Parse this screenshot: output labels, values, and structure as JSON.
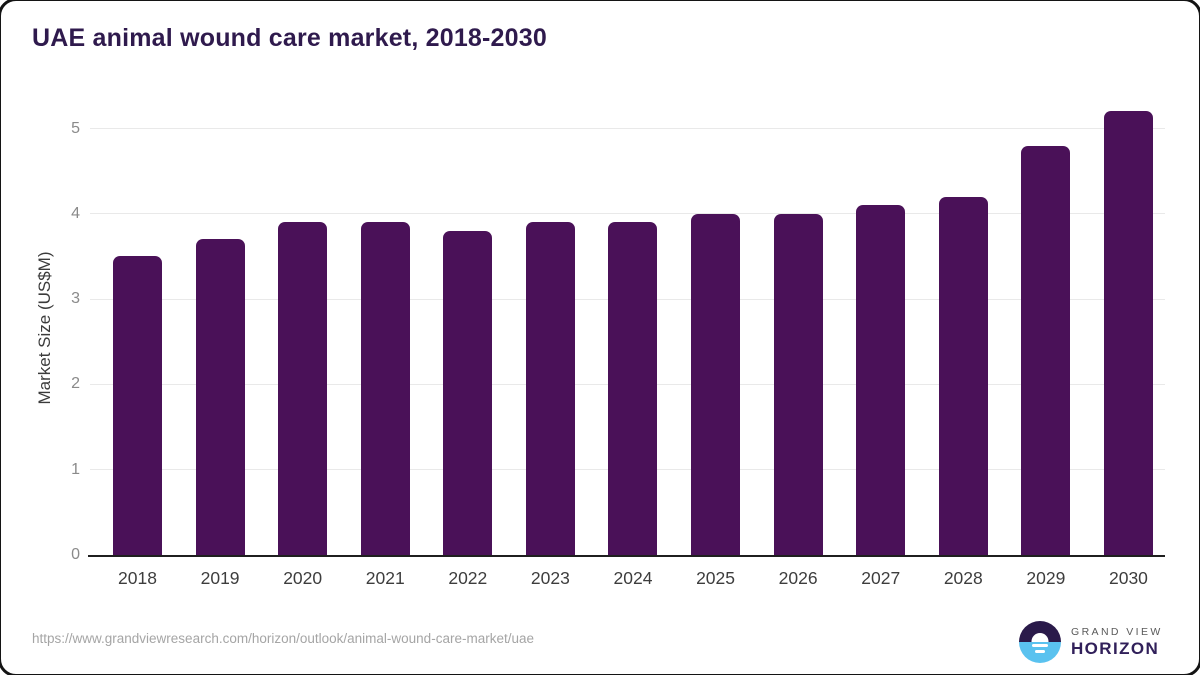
{
  "title": "UAE animal wound care market, 2018-2030",
  "chart_data": {
    "type": "bar",
    "categories": [
      "2018",
      "2019",
      "2020",
      "2021",
      "2022",
      "2023",
      "2024",
      "2025",
      "2026",
      "2027",
      "2028",
      "2029",
      "2030"
    ],
    "values": [
      3.5,
      3.7,
      3.9,
      3.9,
      3.8,
      3.9,
      3.9,
      4.0,
      4.0,
      4.1,
      4.2,
      4.8,
      5.2
    ],
    "title": "UAE animal wound care market, 2018-2030",
    "xlabel": "",
    "ylabel": "Market Size (US$M)",
    "yticks": [
      0,
      1,
      2,
      3,
      4,
      5
    ],
    "ylim": [
      0,
      5.33
    ],
    "grid": "horizontal",
    "legend": "none",
    "bar_color": "#4a1158"
  },
  "footer": {
    "url": "https://www.grandviewresearch.com/horizon/outlook/animal-wound-care-market/uae"
  },
  "logo": {
    "line1": "GRAND VIEW",
    "line2": "HORIZON"
  },
  "colors": {
    "bar": "#4a1158",
    "title": "#2f1a4d",
    "grid": "#e9e9e9",
    "axis": "#1f1f1f",
    "ytick": "#8a8a8a",
    "xtick": "#3d3d3d",
    "ytitle": "#3b3b3b",
    "url": "#a5a5a5",
    "logo_purple": "#2a1a4a",
    "logo_blue": "#5ac2ef",
    "grandview": "#5a5a5a",
    "horizon": "#31205a"
  }
}
